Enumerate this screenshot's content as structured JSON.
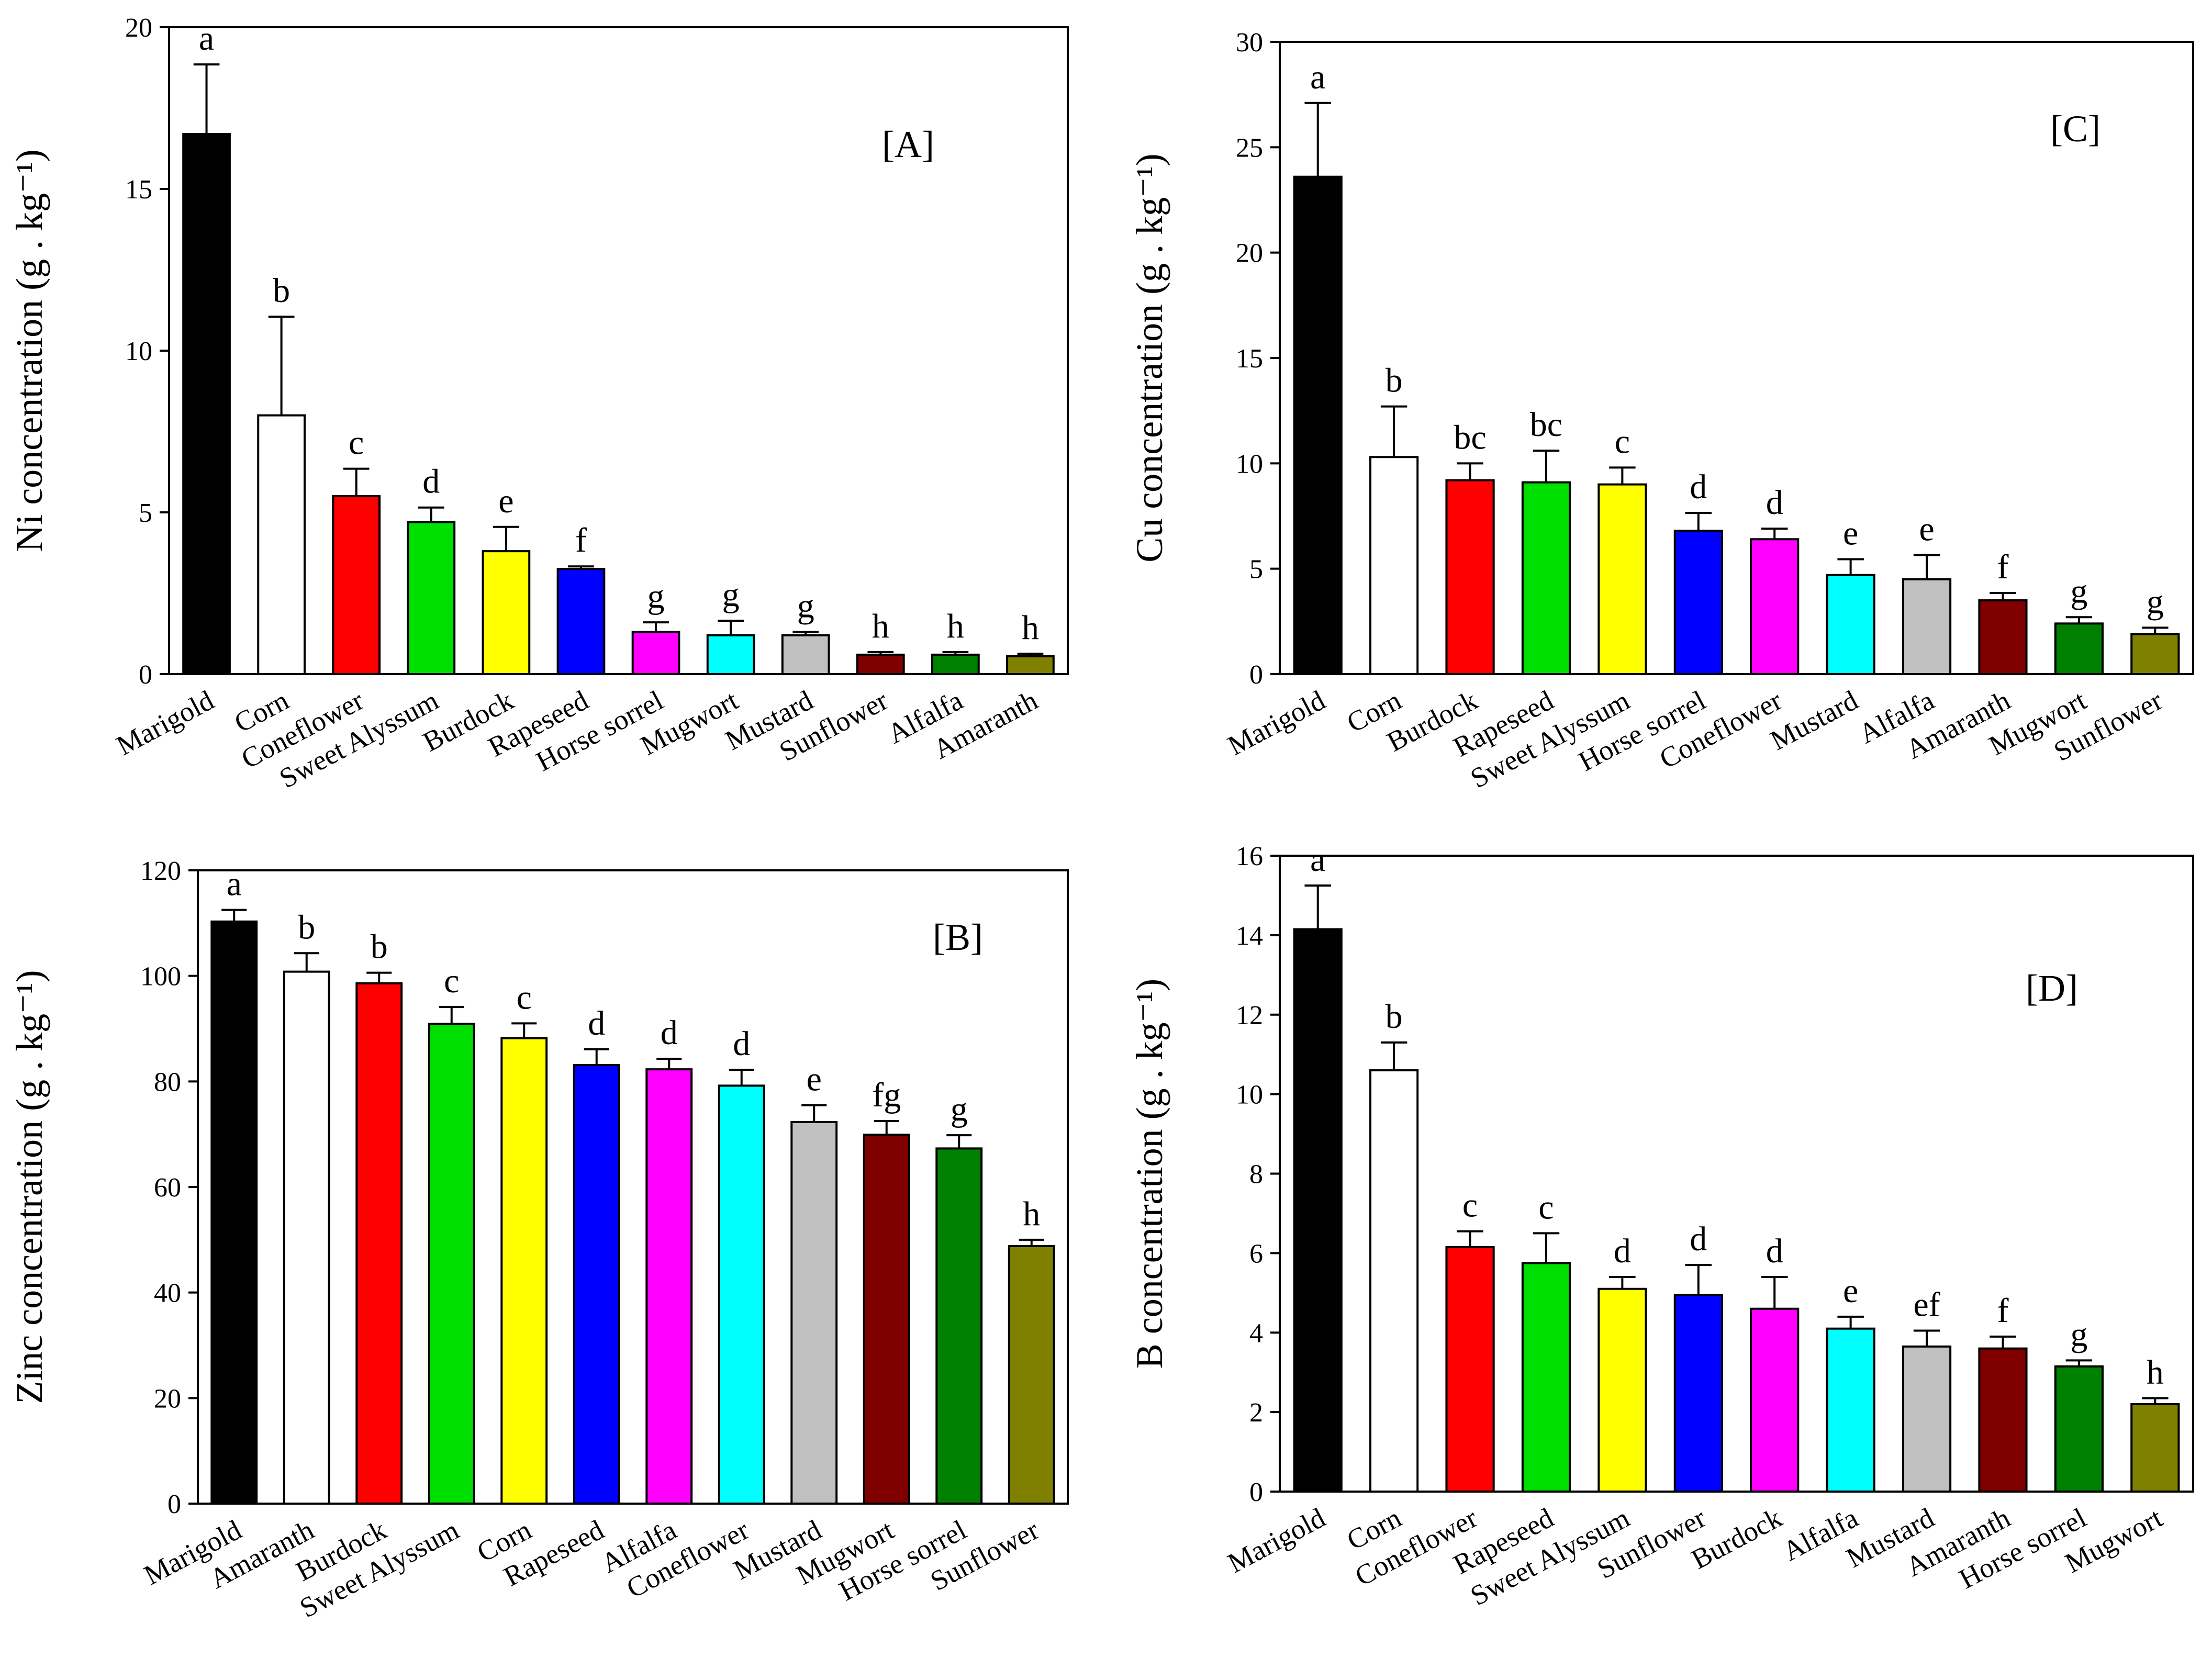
{
  "colors": {
    "black": "#000000",
    "white": "#ffffff",
    "red": "#ff0000",
    "green": "#00e000",
    "yellow": "#ffff00",
    "blue": "#0000ff",
    "magenta": "#ff00ff",
    "cyan": "#00ffff",
    "gray": "#c0c0c0",
    "darkred": "#800000",
    "darkgreen": "#008000",
    "olive": "#808000"
  },
  "chart_data": [
    {
      "id": "A",
      "type": "bar",
      "panel_label": "[A]",
      "ylabel": "Ni concentration (g . kg⁻¹)",
      "ylim": [
        0,
        20
      ],
      "yticks": [
        0,
        5,
        10,
        15,
        20
      ],
      "categories": [
        "Marigold",
        "Corn",
        "Coneflower",
        "Sweet Alyssum",
        "Burdock",
        "Rapeseed",
        "Horse sorrel",
        "Mugwort",
        "Mustard",
        "Sunflower",
        "Alfalfa",
        "Amaranth"
      ],
      "values": [
        16.7,
        8.0,
        5.5,
        4.7,
        3.8,
        3.25,
        1.3,
        1.2,
        1.2,
        0.6,
        0.6,
        0.55
      ],
      "errors": [
        2.15,
        3.05,
        0.85,
        0.45,
        0.75,
        0.08,
        0.3,
        0.45,
        0.1,
        0.08,
        0.08,
        0.08
      ],
      "letters": [
        "a",
        "b",
        "c",
        "d",
        "e",
        "f",
        "g",
        "g",
        "g",
        "h",
        "h",
        "h"
      ],
      "bar_colors": [
        "black",
        "white",
        "red",
        "green",
        "yellow",
        "blue",
        "magenta",
        "cyan",
        "gray",
        "darkred",
        "darkgreen",
        "olive"
      ]
    },
    {
      "id": "C",
      "type": "bar",
      "panel_label": "[C]",
      "ylabel": "Cu concentration (g . kg⁻¹)",
      "ylim": [
        0,
        30
      ],
      "yticks": [
        0,
        5,
        10,
        15,
        20,
        25,
        30
      ],
      "categories": [
        "Marigold",
        "Corn",
        "Burdock",
        "Rapeseed",
        "Sweet Alyssum",
        "Horse sorrel",
        "Coneflower",
        "Mustard",
        "Alfalfa",
        "Amaranth",
        "Mugwort",
        "Sunflower"
      ],
      "values": [
        23.6,
        10.3,
        9.2,
        9.1,
        9.0,
        6.8,
        6.4,
        4.7,
        4.5,
        3.5,
        2.4,
        1.9
      ],
      "errors": [
        3.5,
        2.4,
        0.8,
        1.5,
        0.8,
        0.85,
        0.5,
        0.75,
        1.15,
        0.35,
        0.3,
        0.3
      ],
      "letters": [
        "a",
        "b",
        "bc",
        "bc",
        "c",
        "d",
        "d",
        "e",
        "e",
        "f",
        "g",
        "g"
      ],
      "bar_colors": [
        "black",
        "white",
        "red",
        "green",
        "yellow",
        "blue",
        "magenta",
        "cyan",
        "gray",
        "darkred",
        "darkgreen",
        "olive"
      ]
    },
    {
      "id": "B",
      "type": "bar",
      "panel_label": "[B]",
      "ylabel": "Zinc concentration (g . kg⁻¹)",
      "ylim": [
        0,
        120
      ],
      "yticks": [
        0,
        20,
        40,
        60,
        80,
        100,
        120
      ],
      "categories": [
        "Marigold",
        "Amaranth",
        "Burdock",
        "Sweet Alyssum",
        "Corn",
        "Rapeseed",
        "Alfalfa",
        "Coneflower",
        "Mustard",
        "Mugwort",
        "Horse sorrel",
        "Sunflower"
      ],
      "values": [
        110.3,
        100.8,
        98.6,
        90.9,
        88.2,
        83.1,
        82.3,
        79.2,
        72.3,
        69.9,
        67.3,
        48.8
      ],
      "errors": [
        2.2,
        3.5,
        2.0,
        3.2,
        2.8,
        3.0,
        2.0,
        3.0,
        3.2,
        2.6,
        2.5,
        1.2
      ],
      "letters": [
        "a",
        "b",
        "b",
        "c",
        "c",
        "d",
        "d",
        "d",
        "e",
        "fg",
        "g",
        "h"
      ],
      "bar_colors": [
        "black",
        "white",
        "red",
        "green",
        "yellow",
        "blue",
        "magenta",
        "cyan",
        "gray",
        "darkred",
        "darkgreen",
        "olive"
      ]
    },
    {
      "id": "D",
      "type": "bar",
      "panel_label": "[D]",
      "ylabel": "B concentration (g . kg⁻¹)",
      "ylim": [
        0,
        16
      ],
      "yticks": [
        0,
        2,
        4,
        6,
        8,
        10,
        12,
        14,
        16
      ],
      "categories": [
        "Marigold",
        "Corn",
        "Coneflower",
        "Rapeseed",
        "Sweet Alyssum",
        "Sunflower",
        "Burdock",
        "Alfalfa",
        "Mustard",
        "Amaranth",
        "Horse sorrel",
        "Mugwort"
      ],
      "values": [
        14.15,
        10.6,
        6.15,
        5.75,
        5.1,
        4.95,
        4.6,
        4.1,
        3.65,
        3.6,
        3.15,
        2.2
      ],
      "errors": [
        1.1,
        0.7,
        0.4,
        0.75,
        0.3,
        0.75,
        0.8,
        0.3,
        0.4,
        0.3,
        0.15,
        0.15
      ],
      "letters": [
        "a",
        "b",
        "c",
        "c",
        "d",
        "d",
        "d",
        "e",
        "ef",
        "f",
        "g",
        "h"
      ],
      "bar_colors": [
        "black",
        "white",
        "red",
        "green",
        "yellow",
        "blue",
        "magenta",
        "cyan",
        "gray",
        "darkred",
        "darkgreen",
        "olive"
      ]
    }
  ]
}
